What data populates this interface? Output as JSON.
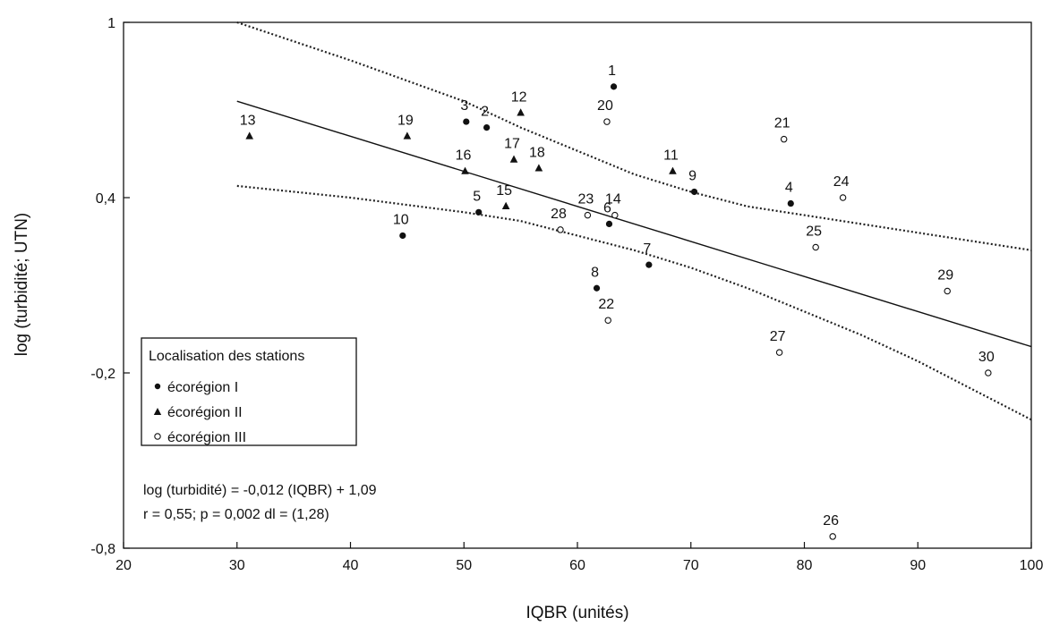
{
  "chart_data": {
    "type": "scatter",
    "xlabel": "IQBR (unités)",
    "ylabel": "log (turbidité;  UTN)",
    "xlim": [
      20,
      100
    ],
    "ylim": [
      -0.8,
      1
    ],
    "xticks": [
      20,
      30,
      40,
      50,
      60,
      70,
      80,
      90,
      100
    ],
    "yticks": [
      -0.8,
      -0.2,
      0.4,
      1
    ],
    "xtick_labels": [
      "20",
      "30",
      "40",
      "50",
      "60",
      "70",
      "80",
      "90",
      "100"
    ],
    "ytick_labels": [
      "-0,8",
      "-0,2",
      "0,4",
      "1"
    ],
    "grid": false,
    "legend": {
      "title": "Localisation des stations",
      "placement": "bottom-left",
      "entries": [
        {
          "group": "I",
          "label": "écorégion I",
          "marker": "filled-circle"
        },
        {
          "group": "II",
          "label": "écorégion II",
          "marker": "filled-triangle"
        },
        {
          "group": "III",
          "label": "écorégion III",
          "marker": "open-circle"
        }
      ]
    },
    "points": [
      {
        "label": "1",
        "x": 63.2,
        "y": 0.78,
        "group": "I"
      },
      {
        "label": "2",
        "x": 52.0,
        "y": 0.64,
        "group": "I"
      },
      {
        "label": "3",
        "x": 50.2,
        "y": 0.66,
        "group": "I"
      },
      {
        "label": "4",
        "x": 78.8,
        "y": 0.38,
        "group": "I"
      },
      {
        "label": "5",
        "x": 51.3,
        "y": 0.35,
        "group": "I"
      },
      {
        "label": "6",
        "x": 62.8,
        "y": 0.31,
        "group": "I"
      },
      {
        "label": "7",
        "x": 66.3,
        "y": 0.17,
        "group": "I"
      },
      {
        "label": "8",
        "x": 61.7,
        "y": 0.09,
        "group": "I"
      },
      {
        "label": "9",
        "x": 70.3,
        "y": 0.42,
        "group": "I"
      },
      {
        "label": "10",
        "x": 44.6,
        "y": 0.27,
        "group": "I"
      },
      {
        "label": "11",
        "x": 68.4,
        "y": 0.49,
        "group": "II"
      },
      {
        "label": "12",
        "x": 55.0,
        "y": 0.69,
        "group": "II"
      },
      {
        "label": "13",
        "x": 31.1,
        "y": 0.61,
        "group": "II"
      },
      {
        "label": "14",
        "x": 63.3,
        "y": 0.34,
        "group": "III"
      },
      {
        "label": "15",
        "x": 53.7,
        "y": 0.37,
        "group": "II"
      },
      {
        "label": "16",
        "x": 50.1,
        "y": 0.49,
        "group": "II"
      },
      {
        "label": "17",
        "x": 54.4,
        "y": 0.53,
        "group": "II"
      },
      {
        "label": "18",
        "x": 56.6,
        "y": 0.5,
        "group": "II"
      },
      {
        "label": "19",
        "x": 45.0,
        "y": 0.61,
        "group": "II"
      },
      {
        "label": "20",
        "x": 62.6,
        "y": 0.66,
        "group": "III"
      },
      {
        "label": "21",
        "x": 78.2,
        "y": 0.6,
        "group": "III"
      },
      {
        "label": "22",
        "x": 62.7,
        "y": -0.02,
        "group": "III"
      },
      {
        "label": "23",
        "x": 60.9,
        "y": 0.34,
        "group": "III"
      },
      {
        "label": "24",
        "x": 83.4,
        "y": 0.4,
        "group": "III"
      },
      {
        "label": "25",
        "x": 81.0,
        "y": 0.23,
        "group": "III"
      },
      {
        "label": "26",
        "x": 82.5,
        "y": -0.76,
        "group": "III"
      },
      {
        "label": "27",
        "x": 77.8,
        "y": -0.13,
        "group": "III"
      },
      {
        "label": "28",
        "x": 58.5,
        "y": 0.29,
        "group": "III"
      },
      {
        "label": "29",
        "x": 92.6,
        "y": 0.08,
        "group": "III"
      },
      {
        "label": "30",
        "x": 96.2,
        "y": -0.2,
        "group": "III"
      }
    ],
    "regression": {
      "slope": -0.012,
      "intercept": 1.09,
      "x_range": [
        30,
        100
      ]
    },
    "confidence_band": {
      "upper": [
        [
          30,
          1.0
        ],
        [
          40,
          0.87
        ],
        [
          50,
          0.73
        ],
        [
          55,
          0.64
        ],
        [
          60,
          0.56
        ],
        [
          65,
          0.48
        ],
        [
          70,
          0.42
        ],
        [
          75,
          0.37
        ],
        [
          80,
          0.34
        ],
        [
          85,
          0.31
        ],
        [
          90,
          0.28
        ],
        [
          95,
          0.25
        ],
        [
          100,
          0.22
        ]
      ],
      "lower": [
        [
          30,
          0.44
        ],
        [
          40,
          0.4
        ],
        [
          50,
          0.35
        ],
        [
          55,
          0.32
        ],
        [
          60,
          0.27
        ],
        [
          65,
          0.22
        ],
        [
          70,
          0.16
        ],
        [
          75,
          0.09
        ],
        [
          80,
          0.01
        ],
        [
          85,
          -0.07
        ],
        [
          90,
          -0.16
        ],
        [
          95,
          -0.26
        ],
        [
          100,
          -0.36
        ]
      ]
    },
    "annotations": {
      "equation": "log (turbidité) = -0,012 (IQBR) + 1,09",
      "stats": "r = 0,55;  p = 0,002  dl = (1,28)"
    }
  }
}
